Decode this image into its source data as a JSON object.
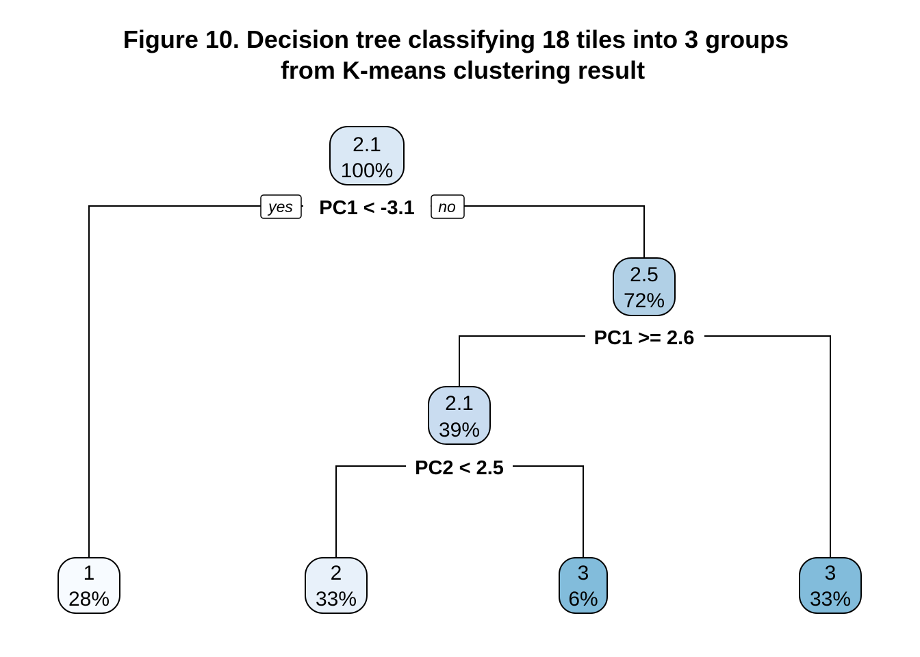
{
  "title": {
    "line1": "Figure 10. Decision tree classifying 18 tiles into 3 groups",
    "line2": "from K-means clustering result"
  },
  "colors": {
    "fill_scale": {
      "1": "#f7fbff",
      "2": "#e8f1fa",
      "2.1": "#dae8f5",
      "2.1_inner": "#c9dcf0",
      "2.5": "#b1d0e6",
      "3": "#82bcdb"
    },
    "line": "#000000",
    "background": "#ffffff"
  },
  "tree": {
    "nodes": {
      "root": {
        "value": "2.1",
        "percent": "100%"
      },
      "right": {
        "value": "2.5",
        "percent": "72%"
      },
      "right_left": {
        "value": "2.1",
        "percent": "39%"
      },
      "leaf1": {
        "value": "1",
        "percent": "28%"
      },
      "leaf2": {
        "value": "2",
        "percent": "33%"
      },
      "leaf3": {
        "value": "3",
        "percent": "6%"
      },
      "leaf4": {
        "value": "3",
        "percent": "33%"
      }
    },
    "splits": {
      "root": "PC1 < -3.1",
      "right": "PC1 >= 2.6",
      "right_left": "PC2 < 2.5"
    },
    "branch_labels": {
      "yes": "yes",
      "no": "no"
    }
  }
}
